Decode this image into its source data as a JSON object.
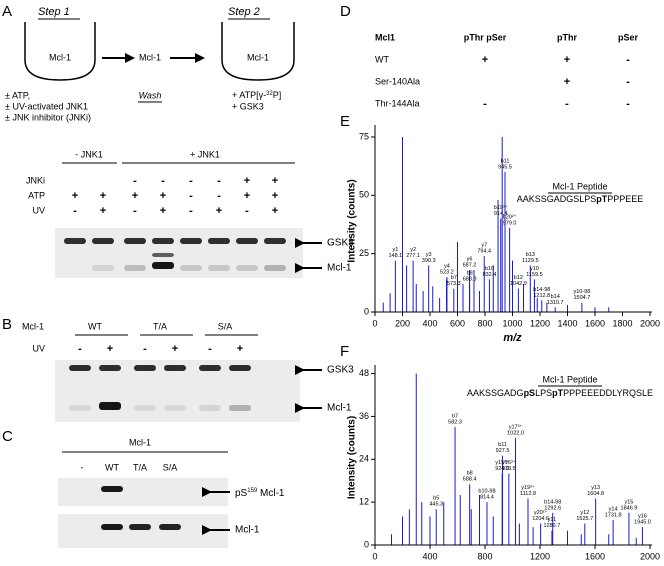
{
  "panel_a": {
    "letter": "A",
    "step1": "Step 1",
    "step2": "Step 2",
    "bowl1": "Mcl-1",
    "middle": "Mcl-1",
    "bowl2": "Mcl-1",
    "wash": "Wash",
    "conditions": [
      "± ATP,",
      "± UV-activated JNK1",
      "± JNK inhibitor (JNKi)"
    ],
    "atp_parts": [
      "+ ATP[γ-",
      "32",
      "P]"
    ],
    "gsk3": "+ GSK3"
  },
  "gel_a": {
    "groups": [
      "- JNK1",
      "+ JNK1"
    ],
    "rows": [
      {
        "name": "JNKi",
        "signs": [
          null,
          null,
          "-",
          "-",
          "-",
          "-",
          "+",
          "+"
        ]
      },
      {
        "name": "ATP",
        "signs": [
          "+",
          "+",
          "+",
          "+",
          "-",
          "-",
          "+",
          "+"
        ]
      },
      {
        "name": "UV",
        "signs": [
          "-",
          "+",
          "-",
          "+",
          "-",
          "+",
          "-",
          "+"
        ]
      }
    ],
    "bands": [
      "GSK3",
      "Mcl-1"
    ]
  },
  "panel_b": {
    "letter": "B",
    "protein": "Mcl-1",
    "groups": [
      "WT",
      "T/A",
      "S/A"
    ],
    "row": "UV",
    "signs": [
      "-",
      "+",
      "-",
      "+",
      "-",
      "+"
    ],
    "bands": [
      "GSK3",
      "Mcl-1"
    ]
  },
  "panel_c": {
    "letter": "C",
    "protein": "Mcl-1",
    "lanes": [
      "-",
      "WT",
      "T/A",
      "S/A"
    ],
    "band1_parts": [
      "pS",
      "159",
      " Mcl-1"
    ],
    "band2": "Mcl-1"
  },
  "panel_d": {
    "letter": "D",
    "header": [
      "Mcl1",
      "pThr pSer",
      "pThr",
      "pSer"
    ],
    "rows": [
      [
        "WT",
        "+",
        "+",
        "-"
      ],
      [
        "Ser-140Ala",
        null,
        "+",
        "-"
      ],
      [
        "Thr-144Ala",
        "-",
        "-",
        "-"
      ]
    ]
  },
  "chart_data": [
    {
      "type": "stem",
      "panel": "E",
      "color": "#1a1ad6",
      "ylabel": "Intensity (counts)",
      "xlabel": "m/z",
      "xlim": [
        0,
        2000
      ],
      "ylim": [
        0,
        78
      ],
      "xticks": [
        0,
        200,
        400,
        600,
        800,
        1000,
        1200,
        1400,
        1600,
        1800,
        2000
      ],
      "yticks": [
        0,
        25,
        50,
        75
      ],
      "peptide_title": "Mcl-1 Peptide",
      "peptide_parts": [
        "AAKSSGADGSLPS",
        "pT",
        "PPPEEE"
      ],
      "peaks": [
        {
          "x": 60,
          "value": 4
        },
        {
          "x": 110,
          "value": 8
        },
        {
          "x": 200,
          "value": 75
        },
        {
          "x": 230,
          "value": 20
        },
        {
          "x": 300,
          "value": 12
        },
        {
          "x": 350,
          "value": 9
        },
        {
          "x": 420,
          "value": 11
        },
        {
          "x": 470,
          "value": 6
        },
        {
          "x": 520,
          "value": 14
        },
        {
          "x": 600,
          "value": 30
        },
        {
          "x": 640,
          "value": 12
        },
        {
          "x": 720,
          "value": 18
        },
        {
          "x": 760,
          "value": 9
        },
        {
          "x": 860,
          "value": 20
        },
        {
          "x": 895,
          "value": 48
        },
        {
          "x": 925,
          "value": 75
        },
        {
          "x": 1000,
          "value": 22
        },
        {
          "x": 1080,
          "value": 12
        },
        {
          "x": 1180,
          "value": 6
        },
        {
          "x": 1250,
          "value": 4
        },
        {
          "x": 1400,
          "value": 3
        },
        {
          "x": 1600,
          "value": 2
        },
        {
          "x": 1700,
          "value": 2
        },
        {
          "x": 148.1,
          "value": 22,
          "ion": "y1",
          "x_label": "148.1",
          "label_color": "#d01010"
        },
        {
          "x": 277.1,
          "value": 22,
          "ion": "y2",
          "x_label": "277.1",
          "label_color": "#d01010"
        },
        {
          "x": 390.3,
          "value": 20,
          "ion": "y3",
          "x_label": "390.3",
          "label_color": "#d01010"
        },
        {
          "x": 523.2,
          "value": 15,
          "ion": "y4",
          "x_label": "523.2",
          "label_color": "#d01010"
        },
        {
          "x": 573.3,
          "value": 10,
          "ion": "b7",
          "x_label": "573.3",
          "label_color": "#000"
        },
        {
          "x": 687.2,
          "value": 18,
          "ion": "y6",
          "x_label": "687.2",
          "label_color": "#d01010"
        },
        {
          "x": 688.3,
          "value": 12,
          "ion": "b8",
          "x_label": "688.3",
          "label_color": "#000"
        },
        {
          "x": 794.4,
          "value": 24,
          "ion": "y7",
          "x_label": "794.4",
          "label_color": "#d01010"
        },
        {
          "x": 832.4,
          "value": 14,
          "ion": "b10",
          "x_label": "832.4",
          "label_color": "#000"
        },
        {
          "x": 914.4,
          "value": 40,
          "ion": "b19²⁺",
          "x_label": "914.4",
          "label_color": "#000"
        },
        {
          "x": 945.5,
          "value": 60,
          "ion": "b11",
          "x_label": "945.5",
          "label_color": "#000"
        },
        {
          "x": 979.0,
          "value": 36,
          "ion": "b20²⁺",
          "x_label": "979.0",
          "label_color": "#000"
        },
        {
          "x": 1042.9,
          "value": 10,
          "ion": "b12",
          "x_label": "1042.9",
          "label_color": "#000"
        },
        {
          "x": 1129.5,
          "value": 20,
          "ion": "b13",
          "x_label": "1129.5",
          "label_color": "#000"
        },
        {
          "x": 1159.5,
          "value": 14,
          "ion": "y10",
          "x_label": "1159.5",
          "label_color": "#d01010"
        },
        {
          "x": 1212.8,
          "value": 5,
          "ion": "b14-98",
          "x_label": "1212.8",
          "label_color": "#000"
        },
        {
          "x": 1310.7,
          "value": 2,
          "ion": "b14",
          "x_label": "1310.7",
          "label_color": "#000"
        },
        {
          "x": 1504.7,
          "value": 4,
          "ion": "y10-98",
          "x_label": "1504.7",
          "label_color": "#d01010"
        }
      ]
    },
    {
      "type": "stem",
      "panel": "F",
      "color": "#1a1ad6",
      "ylabel": "Intensity (counts)",
      "xlabel": "m/z",
      "xlim": [
        0,
        2000
      ],
      "ylim": [
        0,
        49
      ],
      "xticks": [
        0,
        400,
        800,
        1200,
        1600,
        2000
      ],
      "yticks": [
        0,
        12,
        24,
        36,
        48
      ],
      "peptide_title": "Mcl-1 Peptide",
      "peptide_parts": [
        "AAKSSGADG",
        "pS",
        "LPS",
        "pT",
        "PPPEEEDDLYRQSLE"
      ],
      "peaks": [
        {
          "x": 120,
          "value": 3
        },
        {
          "x": 200,
          "value": 8
        },
        {
          "x": 250,
          "value": 10
        },
        {
          "x": 300,
          "value": 48
        },
        {
          "x": 340,
          "value": 12
        },
        {
          "x": 400,
          "value": 8
        },
        {
          "x": 500,
          "value": 12
        },
        {
          "x": 620,
          "value": 14
        },
        {
          "x": 700,
          "value": 10
        },
        {
          "x": 760,
          "value": 14
        },
        {
          "x": 860,
          "value": 8
        },
        {
          "x": 1050,
          "value": 6
        },
        {
          "x": 1150,
          "value": 5
        },
        {
          "x": 1400,
          "value": 4
        },
        {
          "x": 1500,
          "value": 3
        },
        {
          "x": 1700,
          "value": 3
        },
        {
          "x": 1900,
          "value": 2
        },
        {
          "x": 445.3,
          "value": 10,
          "ion": "b5",
          "x_label": "445.3",
          "label_color": "#000"
        },
        {
          "x": 582.3,
          "value": 33,
          "ion": "b7",
          "x_label": "582.3",
          "label_color": "#000"
        },
        {
          "x": 688.4,
          "value": 17,
          "ion": "b8",
          "x_label": "688.4",
          "label_color": "#000"
        },
        {
          "x": 814.4,
          "value": 12,
          "ion": "b10-98",
          "x_label": "814.4",
          "label_color": "#000"
        },
        {
          "x": 924.9,
          "value": 20,
          "ion": "y15³⁺",
          "x_label": "924.9",
          "label_color": "#d01010"
        },
        {
          "x": 927.5,
          "value": 25,
          "ion": "b11",
          "x_label": "927.5",
          "label_color": "#000"
        },
        {
          "x": 973.5,
          "value": 20,
          "ion": "y16³⁺",
          "x_label": "973.5",
          "label_color": "#d01010"
        },
        {
          "x": 1022.0,
          "value": 30,
          "ion": "y17³⁺",
          "x_label": "1022.0",
          "label_color": "#d01010"
        },
        {
          "x": 1112.8,
          "value": 13,
          "ion": "y19²⁺",
          "x_label": "1112.8",
          "label_color": "#d01010"
        },
        {
          "x": 1204.6,
          "value": 6,
          "ion": "y20²⁺",
          "x_label": "1204.6",
          "label_color": "#d01010"
        },
        {
          "x": 1286.7,
          "value": 4,
          "ion": "y11",
          "x_label": "1286.7",
          "label_color": "#d01010"
        },
        {
          "x": 1292.6,
          "value": 9,
          "ion": "b14-98",
          "x_label": "1292.6",
          "label_color": "#000"
        },
        {
          "x": 1525.7,
          "value": 6,
          "ion": "y12",
          "x_label": "1525.7",
          "label_color": "#d01010"
        },
        {
          "x": 1604.8,
          "value": 13,
          "ion": "y13",
          "x_label": "1604.8",
          "label_color": "#d01010"
        },
        {
          "x": 1731.8,
          "value": 7,
          "ion": "y14",
          "x_label": "1731.8",
          "label_color": "#d01010"
        },
        {
          "x": 1846.9,
          "value": 9,
          "ion": "y15",
          "x_label": "1846.9",
          "label_color": "#d01010"
        },
        {
          "x": 1945.0,
          "value": 5,
          "ion": "y16",
          "x_label": "1945.0",
          "label_color": "#d01010"
        }
      ]
    }
  ]
}
